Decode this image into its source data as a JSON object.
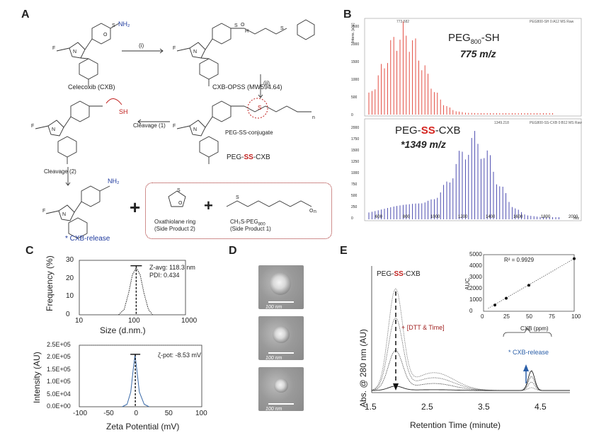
{
  "panels": {
    "A": "A",
    "B": "B",
    "C": "C",
    "D": "D",
    "E": "E"
  },
  "panelA": {
    "reagent_i": "(i)",
    "reagent_ii": "(ii)",
    "nh2": "NH₂",
    "celecoxib": "Celecoxib (CXB)",
    "cxb_opss": "CXB-OPSS (MW594.64)",
    "sh": "SH",
    "cleavage1": "Cleavage (1)",
    "peg_ss_label": "PEG-SS-conjugate",
    "cleavage2": "Cleavage (2)",
    "peg_ss_cxb_prefix": "PEG-",
    "peg_ss_cxb_ss": "SS",
    "peg_ss_cxb_suffix": "-CXB",
    "cxb_release": "* CXB-release",
    "plus": "+",
    "side2_line1": "Oxathiolane ring",
    "side2_line2": "(Side Product 2)",
    "side1_line1": "CH₃S-PEG",
    "side1_line1_sub": "800",
    "side1_line2": "(Side Product 1)",
    "f": "F",
    "n": "N",
    "s": "S",
    "o": "O",
    "h": "H",
    "nn": "n"
  },
  "panelB": {
    "top_ylabel": "Intens. [a.u.]",
    "top_header": "PEG800-SH 0:A12 MS Raw",
    "top_peak": "773.582",
    "top_name_main": "PEG",
    "top_name_sub": "800",
    "top_name_suffix": "-SH",
    "top_mz": "775 m/z",
    "bottom_ylabel": "Intens. [a.u.]",
    "bottom_header": "PEG800-SS-CXB 0:B12 MS Raw",
    "bottom_peak": "1349.218",
    "bottom_name_prefix": "PEG-",
    "bottom_name_ss": "SS",
    "bottom_name_suffix": "-CXB",
    "bottom_mz": "*1349 m/z",
    "xunit": "m/z",
    "top_yticks": [
      "2500",
      "2000",
      "1500",
      "1000",
      "500",
      "0"
    ],
    "bottom_yticks": [
      "2000",
      "1750",
      "1500",
      "1250",
      "1000",
      "750",
      "500",
      "250",
      "0"
    ],
    "xticks": [
      "600",
      "800",
      "1000",
      "1200",
      "1400",
      "1600",
      "1800",
      "2000"
    ]
  },
  "panelC": {
    "size_chart": {
      "type": "line",
      "xlabel": "Size (d.nm.)",
      "ylabel": "Frequency (%)",
      "xscale": "log",
      "xlim": [
        10,
        1000
      ],
      "ylim": [
        0,
        30
      ],
      "xticks": [
        "10",
        "100",
        "1000"
      ],
      "yticks": [
        "30",
        "20",
        "10",
        "0"
      ],
      "annotation_line1": "Z-avg: 118.3 nm",
      "annotation_line2": "PDI: 0.434",
      "x": [
        55,
        70,
        85,
        100,
        118,
        140,
        165,
        200,
        240
      ],
      "y": [
        0,
        3,
        12,
        22,
        26,
        22,
        12,
        3,
        0
      ]
    },
    "zeta_chart": {
      "type": "line",
      "xlabel": "Zeta Potential (mV)",
      "ylabel": "Intensity (AU)",
      "xlim": [
        -100,
        100
      ],
      "ylim": [
        0,
        250000
      ],
      "xticks": [
        "-100",
        "-50",
        "0",
        "50",
        "100"
      ],
      "yticks": [
        "2.5E+05",
        "2.0E+05",
        "1.5E+05",
        "1.0E+05",
        "5.0E+04",
        "0.0E+00"
      ],
      "annotation": "ζ-pot: -8.53 mV",
      "x": [
        -30,
        -22,
        -16,
        -12,
        -9,
        -6,
        -2,
        6,
        14
      ],
      "y": [
        0,
        10000,
        60000,
        150000,
        210000,
        150000,
        60000,
        10000,
        0
      ]
    }
  },
  "panelD": {
    "scale_labels": [
      "100 nm",
      "100 nm",
      "100 nm"
    ]
  },
  "panelE": {
    "main_chart": {
      "type": "line",
      "title": "PEG-SS-CXB",
      "title_prefix": "PEG-",
      "title_ss": "SS",
      "title_suffix": "-CXB",
      "xlabel": "Retention Time (minute)",
      "ylabel": "Abs. @ 280 nm (AU)",
      "xlim": [
        1.5,
        5.0
      ],
      "xticks": [
        "1.5",
        "2.5",
        "3.5",
        "4.5"
      ],
      "arrow_note": "+ [DTT & Time]",
      "release_note": "* CXB-release"
    },
    "inset_chart": {
      "type": "scatter",
      "equation": "R² = 0.9929",
      "xlabel": "CXB (ppm)",
      "ylabel": "AUC",
      "xlim": [
        0,
        100
      ],
      "ylim": [
        0,
        5000
      ],
      "xticks": [
        "0",
        "25",
        "50",
        "75",
        "100"
      ],
      "yticks": [
        "5000",
        "4000",
        "3000",
        "2000",
        "1000",
        "0"
      ],
      "x": [
        12.5,
        25,
        50,
        100
      ],
      "y": [
        550,
        1150,
        2300,
        4650
      ]
    }
  }
}
